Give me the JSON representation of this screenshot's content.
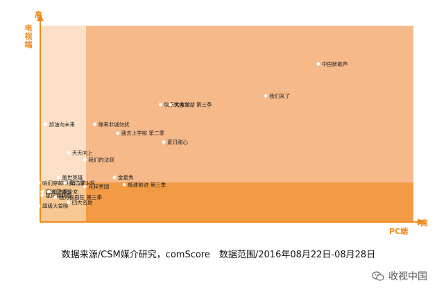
{
  "chart_data": {
    "type": "scatter",
    "ylabel_top": "高",
    "ylabel_name": "电视端",
    "xlabel_end": "高",
    "xlabel_name": "PC端",
    "xlim": [
      0,
      100
    ],
    "ylim": [
      0,
      100
    ],
    "points": [
      {
        "label": "中国新歌声",
        "x": 85,
        "y": 89
      },
      {
        "label": "我们来了",
        "x": 69,
        "y": 71
      },
      {
        "label": "快乐大本营",
        "x": 37,
        "y": 66
      },
      {
        "label": "笑傲江湖 第三季",
        "x": 40,
        "y": 66
      },
      {
        "label": "加油向未来",
        "x": 2,
        "y": 55
      },
      {
        "label": "缘来非诚勿扰",
        "x": 17,
        "y": 55
      },
      {
        "label": "我去上学啦 第二季",
        "x": 24,
        "y": 50
      },
      {
        "label": "夏日甜心",
        "x": 38,
        "y": 45
      },
      {
        "label": "天天向上",
        "x": 9,
        "y": 39
      },
      {
        "label": "我们的法则",
        "x": 14,
        "y": 35
      },
      {
        "label": "盖世英雄",
        "x": 6,
        "y": 25
      },
      {
        "label": "哈们穿越吧 第二季",
        "x": 0,
        "y": 22
      },
      {
        "label": "我们战斗吧",
        "x": 8,
        "y": 22
      },
      {
        "label": "金星秀",
        "x": 23,
        "y": 25
      },
      {
        "label": "花样男团",
        "x": 14,
        "y": 20
      },
      {
        "label": "极速前进 第三季",
        "x": 26,
        "y": 21
      },
      {
        "label": "阳光艺体能",
        "x": 1,
        "y": 17
      },
      {
        "label": "加油美少女",
        "x": 3,
        "y": 17
      },
      {
        "label": "星球者联盟",
        "x": 1,
        "y": 15
      },
      {
        "label": "我为喜剧狂 第三季",
        "x": 5,
        "y": 14
      },
      {
        "label": "四大名助",
        "x": 9,
        "y": 11
      },
      {
        "label": "超级大首映",
        "x": 0,
        "y": 9
      }
    ]
  },
  "footer": {
    "source": "数据来源/CSM媒介研究，comScore　数据范围/2016年08月22日-08月28日"
  },
  "watermark": {
    "text": "收视中国",
    "icon": "wechat-icon"
  },
  "colors": {
    "axis": "#f08a1c",
    "region_main": "#f6b98a",
    "region_left": "#fbe0c7",
    "region_bottom": "#f39a45",
    "region_corner": "#f7c794",
    "point": "#ffffff"
  }
}
